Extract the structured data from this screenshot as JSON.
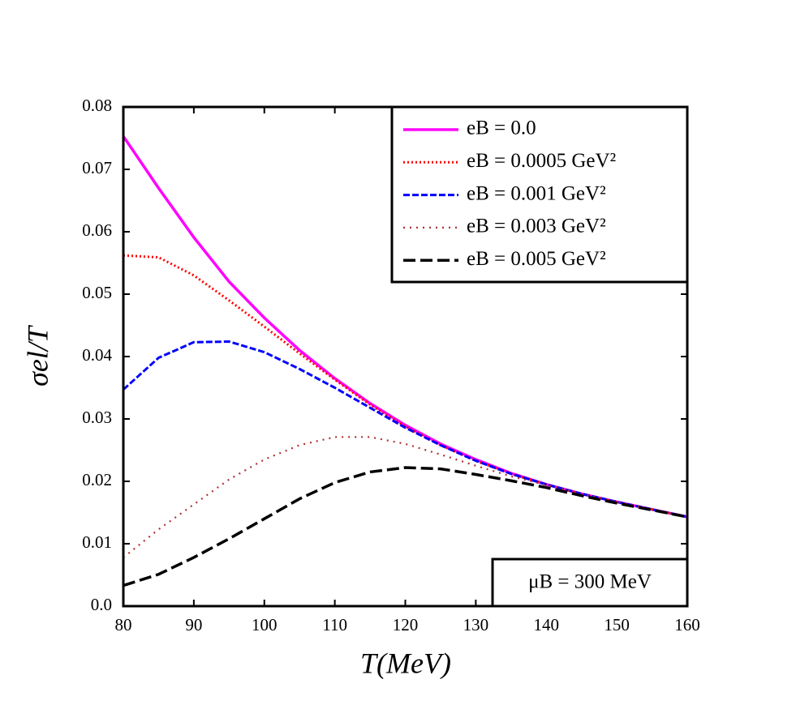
{
  "chart_data": {
    "type": "line",
    "x_label": "T(MeV)",
    "y_label": "σel/T",
    "annotation": "μB = 300 MeV",
    "x": [
      80,
      85,
      90,
      95,
      100,
      105,
      110,
      115,
      120,
      125,
      130,
      135,
      140,
      145,
      150,
      155,
      160
    ],
    "series": [
      {
        "name": "eB = 0.0",
        "color": "#ff00ff",
        "dash": "solid",
        "values": [
          0.0753,
          0.067,
          0.0591,
          0.052,
          0.0462,
          0.041,
          0.0365,
          0.0325,
          0.029,
          0.026,
          0.0235,
          0.0213,
          0.0195,
          0.018,
          0.0167,
          0.0155,
          0.0143
        ]
      },
      {
        "name": "eB = 0.0005 GeV²",
        "color": "#ff0000",
        "dash": "dotted",
        "values": [
          0.0562,
          0.0559,
          0.053,
          0.049,
          0.0448,
          0.0405,
          0.0363,
          0.0323,
          0.0288,
          0.0258,
          0.0233,
          0.0212,
          0.0195,
          0.018,
          0.0167,
          0.0155,
          0.0143
        ]
      },
      {
        "name": "eB = 0.001 GeV²",
        "color": "#0000ff",
        "dash": "dashed",
        "values": [
          0.0347,
          0.0398,
          0.0423,
          0.0424,
          0.0407,
          0.038,
          0.035,
          0.0318,
          0.0286,
          0.0258,
          0.0233,
          0.0212,
          0.0195,
          0.018,
          0.0167,
          0.0155,
          0.0143
        ]
      },
      {
        "name": "eB = 0.003 GeV²",
        "color": "#b03030",
        "dash": "sparse-dotted",
        "values": [
          0.0078,
          0.0123,
          0.0163,
          0.0203,
          0.0235,
          0.0258,
          0.0271,
          0.0271,
          0.026,
          0.0243,
          0.0225,
          0.0208,
          0.0194,
          0.018,
          0.0167,
          0.0155,
          0.0143
        ]
      },
      {
        "name": "eB = 0.005 GeV²",
        "color": "#000000",
        "dash": "long-dashed",
        "values": [
          0.0033,
          0.0051,
          0.0078,
          0.0108,
          0.014,
          0.0172,
          0.0198,
          0.0215,
          0.0222,
          0.022,
          0.0211,
          0.0201,
          0.019,
          0.0177,
          0.0165,
          0.0154,
          0.0143
        ]
      }
    ],
    "xlim": [
      80,
      160
    ],
    "xticks": [
      80,
      90,
      100,
      110,
      120,
      130,
      140,
      150,
      160
    ],
    "ylim": [
      0,
      0.08
    ],
    "yticks": [
      {
        "value": 0,
        "label": "0.0"
      },
      0.01,
      0.02,
      0.03,
      0.04,
      0.05,
      0.06,
      0.07,
      0.08
    ],
    "legend": "upper right",
    "grid": false
  }
}
